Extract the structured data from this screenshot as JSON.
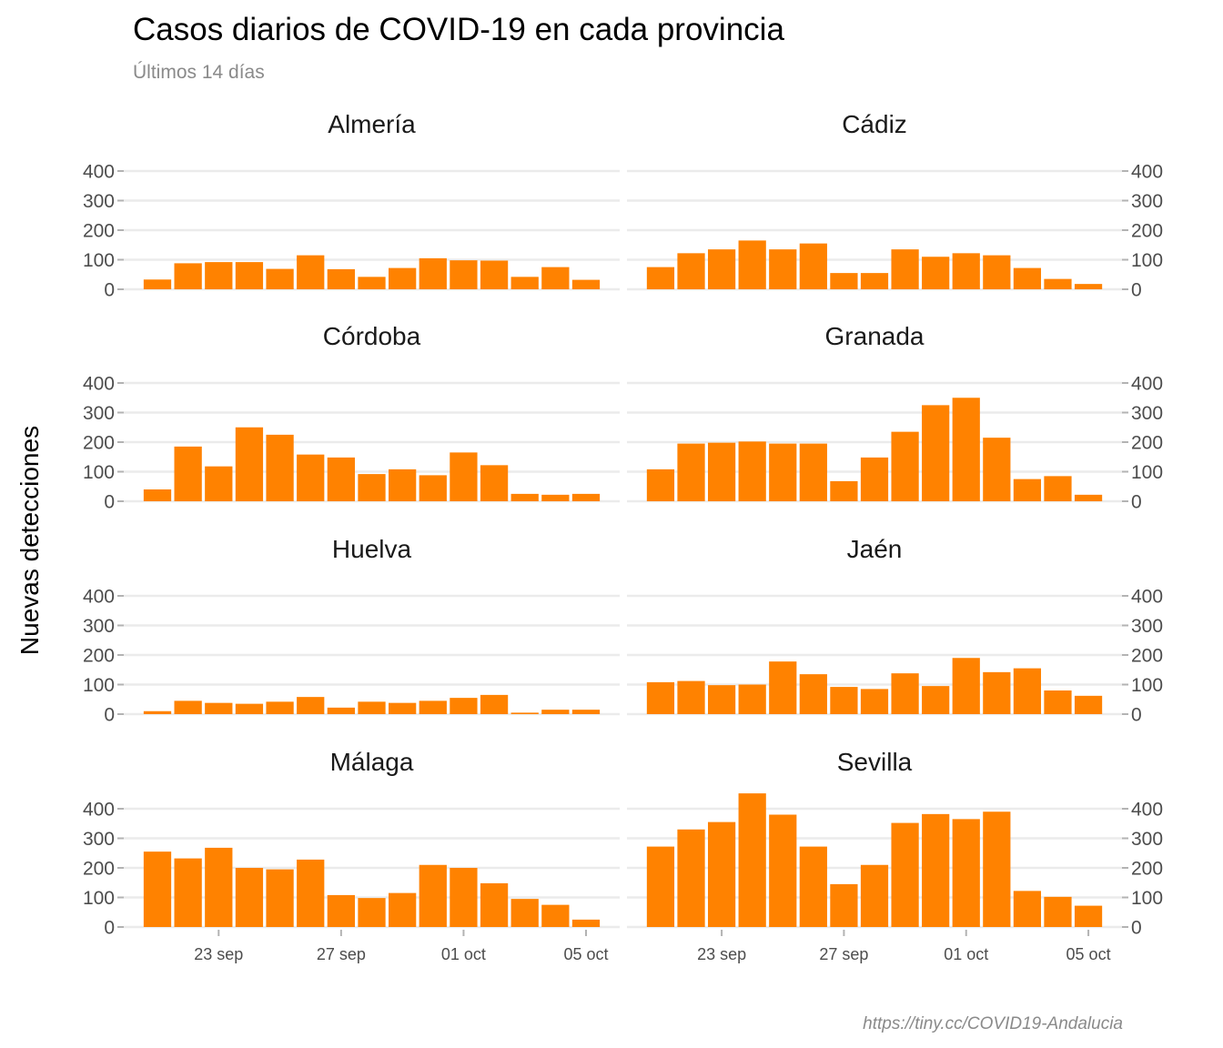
{
  "chart_data": {
    "type": "bar",
    "title": "Casos diarios de COVID-19 en cada provincia",
    "subtitle": "Últimos 14 días",
    "ylabel": "Nuevas detecciones",
    "caption": "https://tiny.cc/COVID19-Andalucia",
    "ylim": [
      0,
      450
    ],
    "yticks": [
      "0",
      "100",
      "200",
      "300",
      "400"
    ],
    "x_dates": [
      "21 sep",
      "22 sep",
      "23 sep",
      "24 sep",
      "25 sep",
      "26 sep",
      "27 sep",
      "28 sep",
      "29 sep",
      "30 sep",
      "01 oct",
      "02 oct",
      "03 oct",
      "04 oct",
      "05 oct"
    ],
    "xticks": [
      {
        "index": 2,
        "label": "23 sep"
      },
      {
        "index": 6,
        "label": "27 sep"
      },
      {
        "index": 10,
        "label": "01 oct"
      },
      {
        "index": 14,
        "label": "05 oct"
      }
    ],
    "bar_color": "#ff8200",
    "grid": true,
    "panels": [
      {
        "name": "Almería",
        "values": [
          33,
          88,
          92,
          92,
          69,
          115,
          68,
          42,
          72,
          105,
          98,
          97,
          42,
          75,
          32
        ]
      },
      {
        "name": "Cádiz",
        "values": [
          75,
          122,
          135,
          165,
          135,
          155,
          55,
          55,
          135,
          110,
          122,
          115,
          72,
          35,
          18
        ]
      },
      {
        "name": "Córdoba",
        "values": [
          40,
          185,
          118,
          250,
          225,
          158,
          148,
          92,
          108,
          88,
          165,
          122,
          25,
          22,
          25
        ]
      },
      {
        "name": "Granada",
        "values": [
          108,
          195,
          198,
          202,
          195,
          195,
          68,
          148,
          235,
          325,
          350,
          215,
          75,
          85,
          22
        ]
      },
      {
        "name": "Huelva",
        "values": [
          10,
          45,
          38,
          35,
          42,
          58,
          22,
          42,
          38,
          45,
          55,
          65,
          5,
          15,
          15
        ]
      },
      {
        "name": "Jaén",
        "values": [
          108,
          112,
          98,
          100,
          178,
          135,
          92,
          85,
          138,
          95,
          190,
          142,
          155,
          80,
          62
        ]
      },
      {
        "name": "Málaga",
        "values": [
          255,
          232,
          268,
          200,
          195,
          228,
          108,
          98,
          115,
          210,
          200,
          148,
          95,
          75,
          25
        ]
      },
      {
        "name": "Sevilla",
        "values": [
          272,
          330,
          355,
          452,
          380,
          272,
          145,
          210,
          352,
          382,
          365,
          390,
          122,
          102,
          72
        ]
      }
    ]
  }
}
